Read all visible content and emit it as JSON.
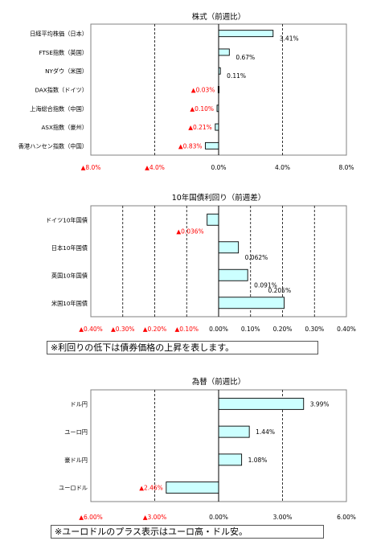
{
  "colors": {
    "bar_fill": "#ccffff",
    "bar_stroke": "#000000",
    "negative_text": "#ff0000",
    "positive_text": "#000000"
  },
  "chart_data": [
    {
      "type": "bar",
      "orientation": "horizontal",
      "title": "株式（前週比）",
      "categories": [
        "日経平均株価（日本）",
        "FTSE指数（英国）",
        "NYダウ（米国）",
        "DAX指数（ドイツ）",
        "上海総合指数（中国）",
        "ASX指数（豪州）",
        "香港ハンセン指数（中国）"
      ],
      "values": [
        3.41,
        0.67,
        0.11,
        -0.03,
        -0.1,
        -0.21,
        -0.83
      ],
      "value_labels": [
        "3.41%",
        "0.67%",
        "0.11%",
        "▲0.03%",
        "▲0.10%",
        "▲0.21%",
        "▲0.83%"
      ],
      "xlim": [
        -8,
        8
      ],
      "ticks": [
        -8,
        -4,
        0,
        4,
        8
      ],
      "tick_labels": [
        "▲8.0%",
        "▲4.0%",
        "0.0%",
        "4.0%",
        "8.0%"
      ],
      "grid": "vertical-dashed"
    },
    {
      "type": "bar",
      "orientation": "horizontal",
      "title": "10年国債利回り（前週差）",
      "categories": [
        "ドイツ10年国債",
        "日本10年国債",
        "英国10年国債",
        "米国10年国債"
      ],
      "values": [
        -0.036,
        0.062,
        0.091,
        0.205
      ],
      "value_labels": [
        "▲0.036%",
        "0.062%",
        "0.091%",
        "0.205%"
      ],
      "xlim": [
        -0.4,
        0.4
      ],
      "ticks": [
        -0.4,
        -0.3,
        -0.2,
        -0.1,
        0,
        0.1,
        0.2,
        0.3,
        0.4
      ],
      "tick_labels": [
        "▲0.40%",
        "▲0.30%",
        "▲0.20%",
        "▲0.10%",
        "0.00%",
        "0.10%",
        "0.20%",
        "0.30%",
        "0.40%"
      ],
      "grid": "vertical-dashed",
      "note": "※利回りの低下は債券価格の上昇を表します。"
    },
    {
      "type": "bar",
      "orientation": "horizontal",
      "title": "為替（前週比）",
      "categories": [
        "ドル円",
        "ユーロ円",
        "豪ドル円",
        "ユーロドル"
      ],
      "values": [
        3.99,
        1.44,
        1.08,
        -2.46
      ],
      "value_labels": [
        "3.99%",
        "1.44%",
        "1.08%",
        "▲2.46%"
      ],
      "xlim": [
        -6,
        6
      ],
      "ticks": [
        -6,
        -3,
        0,
        3,
        6
      ],
      "tick_labels": [
        "▲6.00%",
        "▲3.00%",
        "0.00%",
        "3.00%",
        "6.00%"
      ],
      "grid": "vertical-dashed",
      "note": "※ユーロドルのプラス表示はユーロ高・ドル安。"
    }
  ]
}
